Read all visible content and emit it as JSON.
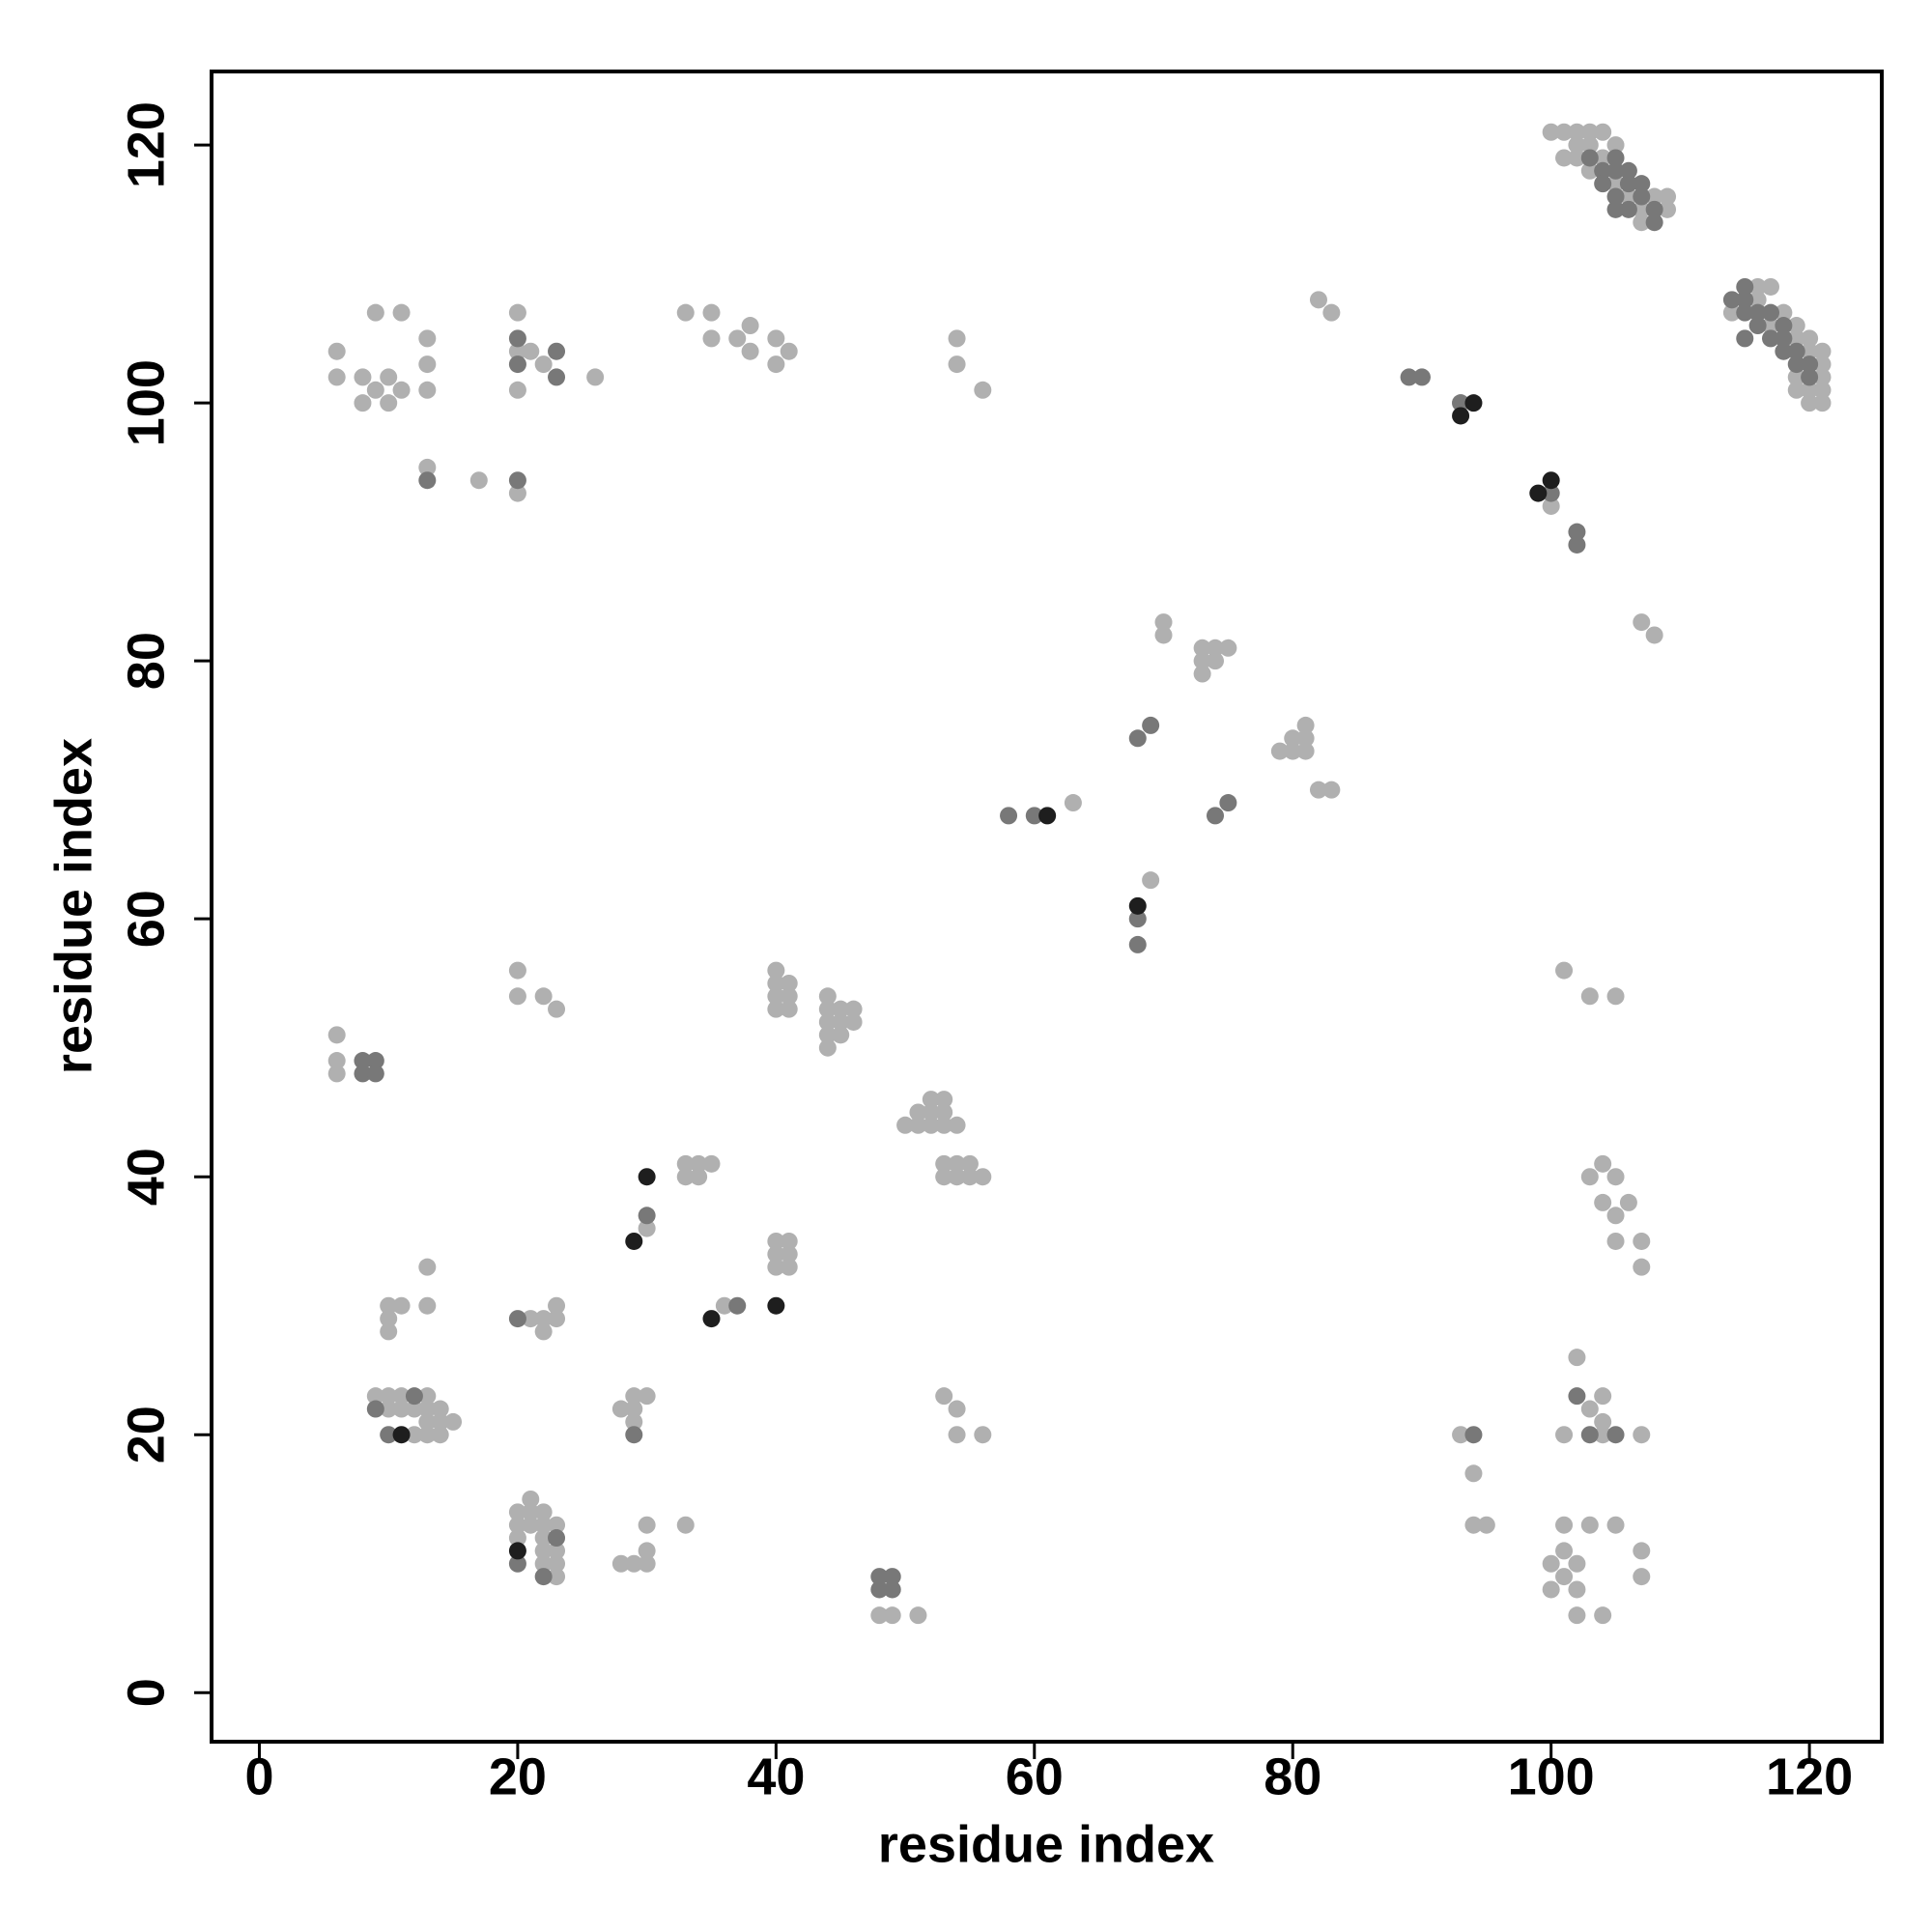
{
  "chart_data": {
    "type": "scatter",
    "xlabel": "residue index",
    "ylabel": "residue index",
    "xlim": [
      -3.7,
      125.6
    ],
    "ylim": [
      -3.8,
      125.7
    ],
    "xticks": [
      0,
      20,
      40,
      60,
      80,
      100,
      120
    ],
    "yticks": [
      0,
      20,
      40,
      60,
      80,
      100,
      120
    ],
    "grid": false,
    "series": [
      {
        "color": "#b0b0b0",
        "x": [
          6,
          6,
          6,
          6,
          6,
          8,
          8,
          9,
          9,
          10,
          10,
          11,
          11,
          13,
          13,
          13,
          13,
          17,
          20,
          20,
          20,
          20,
          21,
          22,
          26,
          33,
          35,
          35,
          37,
          38,
          38,
          40,
          40,
          41,
          54,
          54,
          56,
          82,
          83,
          93,
          100,
          107,
          108,
          70,
          70,
          73,
          73,
          73,
          74,
          74,
          75,
          79,
          80,
          80,
          81,
          81,
          81,
          82,
          83,
          63,
          69,
          20,
          20,
          22,
          23,
          40,
          40,
          40,
          40,
          41,
          41,
          41,
          44,
          44,
          44,
          44,
          44,
          45,
          45,
          45,
          46,
          46,
          50,
          51,
          51,
          52,
          52,
          52,
          53,
          53,
          53,
          54,
          53,
          53,
          54,
          54,
          55,
          55,
          56,
          33,
          33,
          34,
          34,
          35,
          30,
          40,
          40,
          40,
          41,
          41,
          41,
          36,
          10,
          10,
          10,
          11,
          13,
          13,
          21,
          22,
          22,
          23,
          23,
          9,
          10,
          10,
          11,
          11,
          12,
          12,
          13,
          13,
          13,
          13,
          14,
          14,
          14,
          15,
          28,
          29,
          29,
          29,
          30,
          20,
          20,
          20,
          21,
          21,
          21,
          22,
          22,
          22,
          22,
          22,
          23,
          23,
          23,
          23,
          28,
          29,
          30,
          30,
          30,
          33,
          48,
          49,
          51,
          53,
          54,
          54,
          56,
          93,
          94,
          94,
          95,
          100,
          100,
          101,
          101,
          101,
          102,
          102,
          102,
          103,
          104,
          105,
          107,
          107,
          101,
          102,
          103,
          104,
          104,
          104,
          107,
          101,
          103,
          105,
          103,
          104,
          104,
          105,
          105,
          105,
          106,
          107,
          107,
          100,
          101,
          101,
          102,
          102,
          102,
          103,
          103,
          103,
          104,
          104,
          105,
          105,
          106,
          107,
          107,
          108,
          109,
          109,
          114,
          116,
          116,
          117,
          117,
          118,
          119,
          119,
          120,
          120,
          120,
          121,
          121,
          121,
          121,
          121,
          119,
          119,
          120
        ],
        "values": [
          51,
          49,
          48,
          104,
          102,
          102,
          100,
          107,
          101,
          102,
          100,
          107,
          101,
          105,
          103,
          101,
          95,
          94,
          93,
          107,
          104,
          101,
          104,
          103,
          102,
          107,
          107,
          105,
          105,
          106,
          104,
          105,
          103,
          104,
          105,
          103,
          101,
          108,
          107,
          100,
          92,
          83,
          82,
          83,
          82,
          81,
          80,
          79,
          81,
          80,
          81,
          73,
          74,
          73,
          75,
          74,
          73,
          70,
          70,
          69,
          63,
          56,
          54,
          54,
          53,
          56,
          55,
          54,
          53,
          55,
          54,
          53,
          54,
          53,
          52,
          51,
          50,
          53,
          52,
          51,
          53,
          52,
          44,
          45,
          44,
          46,
          45,
          44,
          46,
          45,
          44,
          44,
          41,
          40,
          41,
          40,
          41,
          40,
          40,
          41,
          40,
          41,
          40,
          41,
          36,
          35,
          34,
          33,
          35,
          34,
          33,
          30,
          30,
          29,
          28,
          30,
          33,
          30,
          29,
          29,
          28,
          30,
          29,
          23,
          23,
          22,
          23,
          22,
          22,
          20,
          23,
          22,
          21,
          20,
          22,
          21,
          20,
          21,
          22,
          23,
          22,
          21,
          23,
          14,
          13,
          12,
          15,
          14,
          13,
          14,
          13,
          12,
          11,
          10,
          13,
          11,
          10,
          9,
          10,
          10,
          13,
          11,
          10,
          13,
          6,
          6,
          6,
          23,
          22,
          20,
          20,
          20,
          17,
          13,
          13,
          10,
          8,
          13,
          11,
          9,
          10,
          8,
          6,
          13,
          6,
          13,
          11,
          9,
          20,
          26,
          22,
          23,
          21,
          20,
          20,
          56,
          54,
          54,
          40,
          41,
          38,
          40,
          37,
          35,
          38,
          35,
          33,
          121,
          121,
          119,
          121,
          120,
          119,
          121,
          120,
          118,
          121,
          119,
          120,
          117,
          116,
          115,
          114,
          116,
          116,
          115,
          107,
          109,
          108,
          109,
          106,
          107,
          106,
          105,
          105,
          104,
          101,
          104,
          103,
          102,
          101,
          100,
          102,
          101,
          100
        ]
      },
      {
        "color": "#787878",
        "x": [
          8,
          8,
          9,
          9,
          13,
          20,
          20,
          20,
          23,
          23,
          89,
          90,
          93,
          100,
          102,
          102,
          68,
          69,
          74,
          75,
          58,
          60,
          68,
          68,
          30,
          37,
          20,
          9,
          10,
          12,
          29,
          20,
          22,
          23,
          48,
          48,
          49,
          49,
          94,
          102,
          103,
          105,
          103,
          104,
          104,
          105,
          105,
          105,
          106,
          106,
          106,
          107,
          107,
          108,
          108,
          105,
          114,
          115,
          115,
          115,
          115,
          116,
          116,
          117,
          117,
          118,
          118,
          118,
          119,
          119,
          120,
          120
        ],
        "values": [
          49,
          48,
          49,
          48,
          94,
          94,
          105,
          103,
          104,
          102,
          102,
          102,
          100,
          93,
          90,
          89,
          74,
          75,
          68,
          69,
          68,
          68,
          60,
          58,
          37,
          30,
          29,
          22,
          20,
          23,
          20,
          10,
          9,
          12,
          9,
          8,
          9,
          8,
          20,
          23,
          20,
          20,
          119,
          118,
          117,
          119,
          118,
          116,
          118,
          117,
          115,
          117,
          116,
          115,
          114,
          115,
          108,
          109,
          108,
          107,
          105,
          107,
          106,
          107,
          105,
          106,
          105,
          104,
          104,
          103,
          103,
          102
        ]
      },
      {
        "color": "#1e1e1e",
        "x": [
          94,
          93,
          99,
          100,
          61,
          68,
          30,
          29,
          35,
          40,
          11,
          20
        ],
        "values": [
          100,
          99,
          93,
          94,
          68,
          61,
          40,
          35,
          29,
          30,
          20,
          11
        ]
      }
    ]
  }
}
